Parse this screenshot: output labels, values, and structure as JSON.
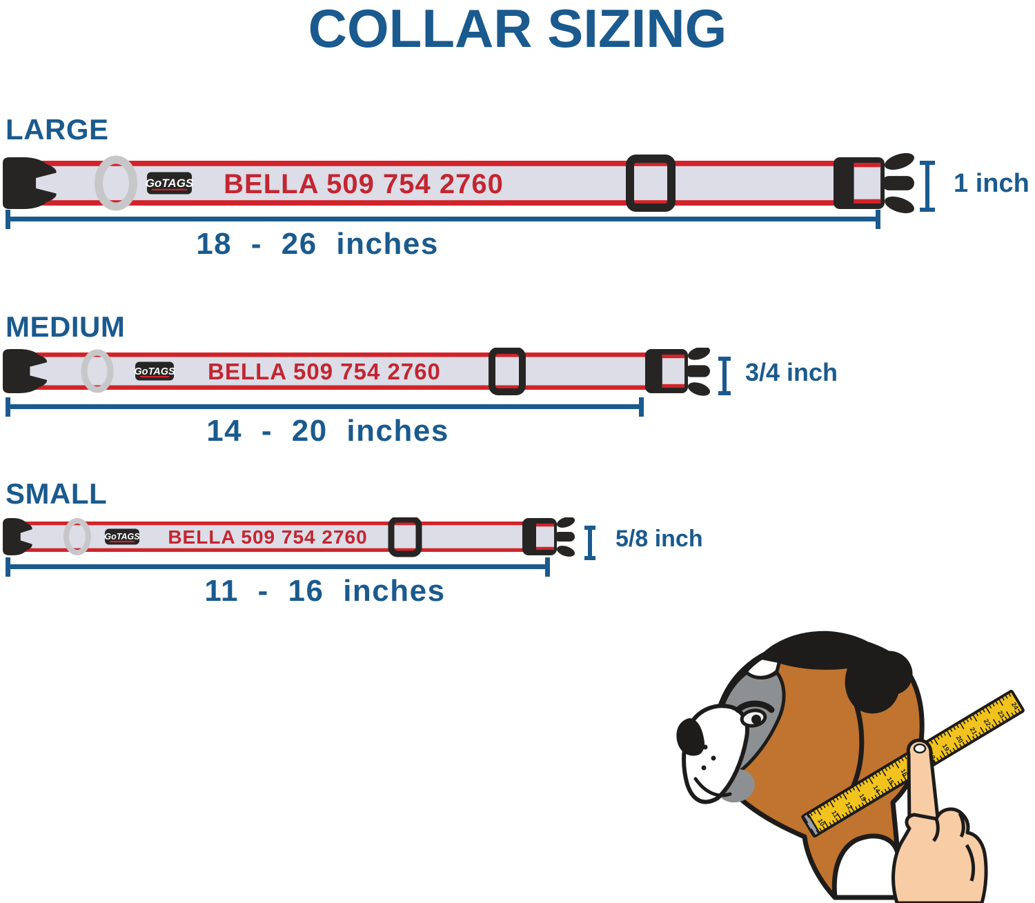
{
  "title": "COLLAR SIZING",
  "brand": {
    "go": "Go",
    "tags": "TAGS"
  },
  "collar_text": "BELLA 509 754 2760",
  "sizes": [
    {
      "label": "LARGE",
      "width": "1 inch",
      "range": "18 - 26 inches"
    },
    {
      "label": "MEDIUM",
      "width": "3/4 inch",
      "range": "14 - 20 inches"
    },
    {
      "label": "SMALL",
      "width": "5/8 inch",
      "range": "11 - 16 inches"
    }
  ],
  "illustration": {
    "tape_numbers": [
      "10",
      "11",
      "12",
      "13",
      "14",
      "15",
      "16",
      "17",
      "18",
      "19",
      "20",
      "21",
      "22",
      "23",
      "24"
    ]
  },
  "colors": {
    "blue": "#1a5a8e",
    "red": "#d2232a",
    "red_text": "#c32531",
    "strap": "#dcdde6",
    "buckle": "#262524",
    "ring": "#c7c7c9",
    "tape": "#f2c31c",
    "metal": "#9aa0a4",
    "skin": "#f8cda6",
    "tan": "#c0742f",
    "gray": "#8d9093",
    "white": "#ffffff"
  }
}
